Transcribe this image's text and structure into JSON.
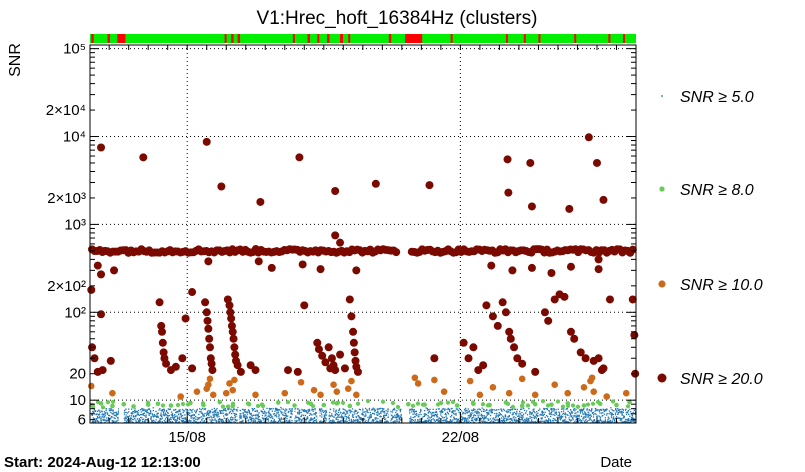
{
  "chart_data": {
    "type": "scatter",
    "title": "V1:Hrec_hoft_16384Hz (clusters)",
    "ylabel": "SNR",
    "xlabel": "Date",
    "start_label": "Start: 2024-Aug-12 12:13:00",
    "y_scale": "log",
    "ylim": [
      5.5,
      110000
    ],
    "xlim": [
      "2024-08-12T12:13",
      "2024-08-26T12:00"
    ],
    "x_ticks": [
      {
        "label": "15/08",
        "value": "2024-08-15T00:00"
      },
      {
        "label": "22/08",
        "value": "2024-08-22T00:00"
      }
    ],
    "y_ticks": [
      {
        "label": "6",
        "value": 6
      },
      {
        "label": "10",
        "value": 10
      },
      {
        "label": "20",
        "value": 20
      },
      {
        "label": "10²",
        "value": 100
      },
      {
        "label": "2×10²",
        "value": 200
      },
      {
        "label": "10³",
        "value": 1000
      },
      {
        "label": "2×10³",
        "value": 2000
      },
      {
        "label": "10⁴",
        "value": 10000
      },
      {
        "label": "2×10⁴",
        "value": 20000
      },
      {
        "label": "10⁵",
        "value": 100000
      }
    ],
    "grid": "dotted at major ticks",
    "legend_position": "right",
    "series": [
      {
        "name": "SNR ≥ 5.0",
        "color": "#1f77b4",
        "marker": "dot",
        "band": "dense cluster population between SNR 5.5 and 8 across all observing time"
      },
      {
        "name": "SNR ≥ 8.0",
        "color": "#66cc55",
        "marker": "small circle",
        "points": [
          [
            "2024-08-12T13:30",
            8.8
          ],
          [
            "2024-08-12T19:00",
            9.2
          ],
          [
            "2024-08-13T02:00",
            8.6
          ],
          [
            "2024-08-13T09:00",
            9.0
          ],
          [
            "2024-08-13T15:00",
            8.5
          ],
          [
            "2024-08-14T00:00",
            8.9
          ],
          [
            "2024-08-14T06:00",
            9.1
          ],
          [
            "2024-08-14T14:00",
            8.7
          ],
          [
            "2024-08-15T02:00",
            9.3
          ],
          [
            "2024-08-15T10:00",
            8.8
          ],
          [
            "2024-08-15T20:00",
            9.5
          ],
          [
            "2024-08-16T04:00",
            8.6
          ],
          [
            "2024-08-16T14:00",
            9.0
          ],
          [
            "2024-08-16T22:00",
            8.9
          ],
          [
            "2024-08-17T08:00",
            9.4
          ],
          [
            "2024-08-17T18:00",
            8.7
          ],
          [
            "2024-08-18T04:00",
            9.1
          ],
          [
            "2024-08-18T12:00",
            8.8
          ],
          [
            "2024-08-18T20:00",
            9.2
          ],
          [
            "2024-08-19T04:00",
            8.6
          ],
          [
            "2024-08-20T16:00",
            9.0
          ],
          [
            "2024-08-21T02:00",
            8.9
          ],
          [
            "2024-08-21T12:00",
            9.3
          ],
          [
            "2024-08-21T22:00",
            8.7
          ],
          [
            "2024-08-22T08:00",
            9.1
          ],
          [
            "2024-08-22T18:00",
            8.8
          ],
          [
            "2024-08-23T04:00",
            9.4
          ],
          [
            "2024-08-23T14:00",
            8.6
          ],
          [
            "2024-08-23T22:00",
            9.0
          ],
          [
            "2024-08-24T08:00",
            8.9
          ],
          [
            "2024-08-24T18:00",
            9.2
          ],
          [
            "2024-08-25T04:00",
            8.7
          ],
          [
            "2024-08-25T14:00",
            9.1
          ],
          [
            "2024-08-26T00:00",
            8.8
          ],
          [
            "2024-08-26T08:00",
            9.5
          ]
        ]
      },
      {
        "name": "SNR ≥ 10.0",
        "color": "#cc6a1a",
        "marker": "circle",
        "points": [
          [
            "2024-08-12T13:00",
            14.5
          ],
          [
            "2024-08-13T02:00",
            12.0
          ],
          [
            "2024-08-14T20:00",
            11.0
          ],
          [
            "2024-08-15T06:00",
            12.5
          ],
          [
            "2024-08-15T12:00",
            13.5
          ],
          [
            "2024-08-15T13:00",
            15.0
          ],
          [
            "2024-08-15T14:00",
            17.5
          ],
          [
            "2024-08-15T16:00",
            11.5
          ],
          [
            "2024-08-16T00:00",
            12.0
          ],
          [
            "2024-08-16T02:00",
            15.5
          ],
          [
            "2024-08-16T04:00",
            13.0
          ],
          [
            "2024-08-16T05:00",
            17.0
          ],
          [
            "2024-08-16T18:00",
            11.5
          ],
          [
            "2024-08-17T12:00",
            12.0
          ],
          [
            "2024-08-17T22:00",
            16.0
          ],
          [
            "2024-08-18T06:00",
            13.0
          ],
          [
            "2024-08-18T10:00",
            11.5
          ],
          [
            "2024-08-18T18:00",
            15.0
          ],
          [
            "2024-08-18T20:00",
            12.5
          ],
          [
            "2024-08-19T03:00",
            13.5
          ],
          [
            "2024-08-19T05:00",
            16.5
          ],
          [
            "2024-08-19T08:00",
            11.5
          ],
          [
            "2024-08-20T20:00",
            18.0
          ],
          [
            "2024-08-20T22:00",
            15.5
          ],
          [
            "2024-08-21T08:00",
            17.0
          ],
          [
            "2024-08-21T14:00",
            12.5
          ],
          [
            "2024-08-22T06:00",
            16.5
          ],
          [
            "2024-08-22T12:00",
            11.5
          ],
          [
            "2024-08-22T20:00",
            14.0
          ],
          [
            "2024-08-23T06:00",
            12.0
          ],
          [
            "2024-08-23T14:00",
            17.5
          ],
          [
            "2024-08-23T22:00",
            11.5
          ],
          [
            "2024-08-24T10:00",
            15.0
          ],
          [
            "2024-08-24T18:00",
            12.0
          ],
          [
            "2024-08-25T04:00",
            14.0
          ],
          [
            "2024-08-25T08:00",
            16.5
          ],
          [
            "2024-08-25T09:00",
            18.0
          ],
          [
            "2024-08-25T10:00",
            12.5
          ],
          [
            "2024-08-25T18:00",
            11.0
          ],
          [
            "2024-08-26T06:00",
            12.0
          ]
        ]
      },
      {
        "name": "SNR ≥ 20.0",
        "color": "#7a0a00",
        "marker": "large circle",
        "band": {
          "snr": 500,
          "from": "2024-08-12T12:13",
          "to": "2024-08-26T12:00",
          "gap": [
            "2024-08-20T11:00",
            "2024-08-20T16:00"
          ]
        },
        "points": [
          [
            "2024-08-12T19:00",
            7500
          ],
          [
            "2024-08-13T21:00",
            5800
          ],
          [
            "2024-08-15T12:00",
            8700
          ],
          [
            "2024-08-15T21:00",
            2700
          ],
          [
            "2024-08-16T21:00",
            1800
          ],
          [
            "2024-08-17T21:00",
            5800
          ],
          [
            "2024-08-18T19:00",
            2400
          ],
          [
            "2024-08-19T20:00",
            2900
          ],
          [
            "2024-08-21T05:00",
            2800
          ],
          [
            "2024-08-23T05:00",
            5500
          ],
          [
            "2024-08-23T05:30",
            2300
          ],
          [
            "2024-08-23T19:00",
            5000
          ],
          [
            "2024-08-23T20:00",
            1600
          ],
          [
            "2024-08-24T19:00",
            1500
          ],
          [
            "2024-08-25T07:00",
            9800
          ],
          [
            "2024-08-25T12:00",
            5000
          ],
          [
            "2024-08-25T16:00",
            1900
          ],
          [
            "2024-08-18T19:00",
            750
          ],
          [
            "2024-08-18T22:00",
            620
          ],
          [
            "2024-08-25T13:00",
            400
          ],
          [
            "2024-08-12T17:00",
            340
          ],
          [
            "2024-08-12T19:00",
            270
          ],
          [
            "2024-08-13T03:00",
            300
          ],
          [
            "2024-08-15T03:00",
            170
          ],
          [
            "2024-08-15T13:00",
            380
          ],
          [
            "2024-08-16T20:00",
            380
          ],
          [
            "2024-08-17T04:00",
            320
          ],
          [
            "2024-08-17T23:00",
            350
          ],
          [
            "2024-08-18T10:00",
            310
          ],
          [
            "2024-08-19T08:00",
            300
          ],
          [
            "2024-08-22T19:00",
            340
          ],
          [
            "2024-08-23T08:00",
            300
          ],
          [
            "2024-08-23T20:00",
            320
          ],
          [
            "2024-08-24T08:00",
            280
          ],
          [
            "2024-08-24T20:00",
            330
          ],
          [
            "2024-08-25T13:00",
            310
          ],
          [
            "2024-08-12T13:00",
            180
          ],
          [
            "2024-08-12T19:00",
            95
          ],
          [
            "2024-08-12T13:30",
            40
          ],
          [
            "2024-08-12T15:00",
            30
          ],
          [
            "2024-08-12T17:00",
            21
          ],
          [
            "2024-08-12T20:00",
            22
          ],
          [
            "2024-08-13T01:00",
            28
          ],
          [
            "2024-08-14T07:00",
            130
          ],
          [
            "2024-08-14T08:00",
            70
          ],
          [
            "2024-08-14T08:30",
            60
          ],
          [
            "2024-08-14T09:00",
            45
          ],
          [
            "2024-08-14T09:30",
            35
          ],
          [
            "2024-08-14T10:00",
            30
          ],
          [
            "2024-08-14T11:00",
            26
          ],
          [
            "2024-08-14T14:00",
            22
          ],
          [
            "2024-08-14T17:00",
            24
          ],
          [
            "2024-08-14T21:00",
            30
          ],
          [
            "2024-08-14T23:00",
            85
          ],
          [
            "2024-08-15T03:00",
            23
          ],
          [
            "2024-08-15T11:00",
            130
          ],
          [
            "2024-08-15T12:00",
            100
          ],
          [
            "2024-08-15T12:30",
            80
          ],
          [
            "2024-08-15T13:00",
            65
          ],
          [
            "2024-08-15T13:30",
            50
          ],
          [
            "2024-08-15T14:00",
            40
          ],
          [
            "2024-08-15T14:30",
            30
          ],
          [
            "2024-08-15T15:00",
            26
          ],
          [
            "2024-08-15T15:30",
            22
          ],
          [
            "2024-08-16T01:00",
            140
          ],
          [
            "2024-08-16T02:00",
            120
          ],
          [
            "2024-08-16T02:30",
            100
          ],
          [
            "2024-08-16T03:00",
            85
          ],
          [
            "2024-08-16T03:30",
            70
          ],
          [
            "2024-08-16T04:00",
            60
          ],
          [
            "2024-08-16T04:30",
            50
          ],
          [
            "2024-08-16T05:00",
            40
          ],
          [
            "2024-08-16T05:30",
            33
          ],
          [
            "2024-08-16T06:00",
            28
          ],
          [
            "2024-08-16T07:00",
            25
          ],
          [
            "2024-08-16T09:00",
            21
          ],
          [
            "2024-08-16T15:00",
            25
          ],
          [
            "2024-08-16T18:00",
            22
          ],
          [
            "2024-08-17T14:00",
            22
          ],
          [
            "2024-08-17T20:00",
            21
          ],
          [
            "2024-08-18T00:00",
            120
          ],
          [
            "2024-08-18T08:00",
            45
          ],
          [
            "2024-08-18T09:00",
            38
          ],
          [
            "2024-08-18T11:00",
            32
          ],
          [
            "2024-08-18T13:00",
            27
          ],
          [
            "2024-08-18T15:00",
            40
          ],
          [
            "2024-08-18T16:00",
            23
          ],
          [
            "2024-08-18T17:00",
            30
          ],
          [
            "2024-08-18T18:00",
            25
          ],
          [
            "2024-08-18T19:00",
            22
          ],
          [
            "2024-08-18T22:00",
            33
          ],
          [
            "2024-08-19T01:00",
            23
          ],
          [
            "2024-08-19T04:00",
            140
          ],
          [
            "2024-08-19T05:00",
            90
          ],
          [
            "2024-08-19T06:00",
            60
          ],
          [
            "2024-08-19T06:30",
            45
          ],
          [
            "2024-08-19T07:00",
            35
          ],
          [
            "2024-08-19T07:30",
            28
          ],
          [
            "2024-08-19T08:00",
            24
          ],
          [
            "2024-08-19T09:00",
            21
          ],
          [
            "2024-08-21T08:00",
            30
          ],
          [
            "2024-08-22T02:00",
            45
          ],
          [
            "2024-08-22T05:00",
            30
          ],
          [
            "2024-08-22T08:00",
            40
          ],
          [
            "2024-08-22T11:00",
            22
          ],
          [
            "2024-08-22T14:00",
            25
          ],
          [
            "2024-08-22T16:00",
            120
          ],
          [
            "2024-08-22T20:00",
            90
          ],
          [
            "2024-08-22T23:00",
            70
          ],
          [
            "2024-08-23T02:00",
            130
          ],
          [
            "2024-08-23T04:00",
            100
          ],
          [
            "2024-08-23T06:00",
            60
          ],
          [
            "2024-08-23T07:00",
            50
          ],
          [
            "2024-08-23T09:00",
            40
          ],
          [
            "2024-08-23T11:00",
            30
          ],
          [
            "2024-08-23T14:00",
            26
          ],
          [
            "2024-08-23T22:00",
            21
          ],
          [
            "2024-08-24T04:00",
            100
          ],
          [
            "2024-08-24T06:00",
            80
          ],
          [
            "2024-08-24T10:00",
            140
          ],
          [
            "2024-08-24T13:00",
            160
          ],
          [
            "2024-08-24T16:00",
            150
          ],
          [
            "2024-08-24T20:00",
            60
          ],
          [
            "2024-08-24T22:00",
            50
          ],
          [
            "2024-08-25T02:00",
            35
          ],
          [
            "2024-08-25T05:00",
            30
          ],
          [
            "2024-08-25T10:00",
            28
          ],
          [
            "2024-08-25T13:00",
            30
          ],
          [
            "2024-08-25T15:00",
            22
          ],
          [
            "2024-08-25T16:00",
            23
          ],
          [
            "2024-08-25T20:00",
            140
          ],
          [
            "2024-08-26T10:00",
            140
          ],
          [
            "2024-08-26T11:00",
            55
          ],
          [
            "2024-08-26T11:30",
            20
          ]
        ]
      }
    ],
    "state_bar": {
      "colors": {
        "ok": "#00ee00",
        "bad": "#ff0000"
      },
      "bad_segments": [
        [
          "2024-08-12T13:00",
          "2024-08-12T14:30"
        ],
        [
          "2024-08-12T23:00",
          "2024-08-13T00:30"
        ],
        [
          "2024-08-13T05:00",
          "2024-08-13T10:00"
        ],
        [
          "2024-08-15T23:00",
          "2024-08-15T23:50"
        ],
        [
          "2024-08-16T03:00",
          "2024-08-16T04:30"
        ],
        [
          "2024-08-16T07:00",
          "2024-08-16T08:30"
        ],
        [
          "2024-08-17T17:00",
          "2024-08-17T18:00"
        ],
        [
          "2024-08-18T02:00",
          "2024-08-18T03:30"
        ],
        [
          "2024-08-18T08:00",
          "2024-08-18T09:00"
        ],
        [
          "2024-08-18T14:00",
          "2024-08-18T15:30"
        ],
        [
          "2024-08-18T22:00",
          "2024-08-18T23:50"
        ],
        [
          "2024-08-19T03:00",
          "2024-08-19T04:00"
        ],
        [
          "2024-08-20T04:00",
          "2024-08-20T05:30"
        ],
        [
          "2024-08-20T14:00",
          "2024-08-21T00:30"
        ],
        [
          "2024-08-21T18:00",
          "2024-08-21T19:00"
        ],
        [
          "2024-08-23T04:00",
          "2024-08-23T05:00"
        ],
        [
          "2024-08-23T15:00",
          "2024-08-23T16:00"
        ],
        [
          "2024-08-24T00:00",
          "2024-08-24T01:00"
        ],
        [
          "2024-08-24T22:00",
          "2024-08-24T23:00"
        ],
        [
          "2024-08-25T19:00",
          "2024-08-25T20:00"
        ],
        [
          "2024-08-26T04:00",
          "2024-08-26T05:00"
        ]
      ]
    }
  }
}
